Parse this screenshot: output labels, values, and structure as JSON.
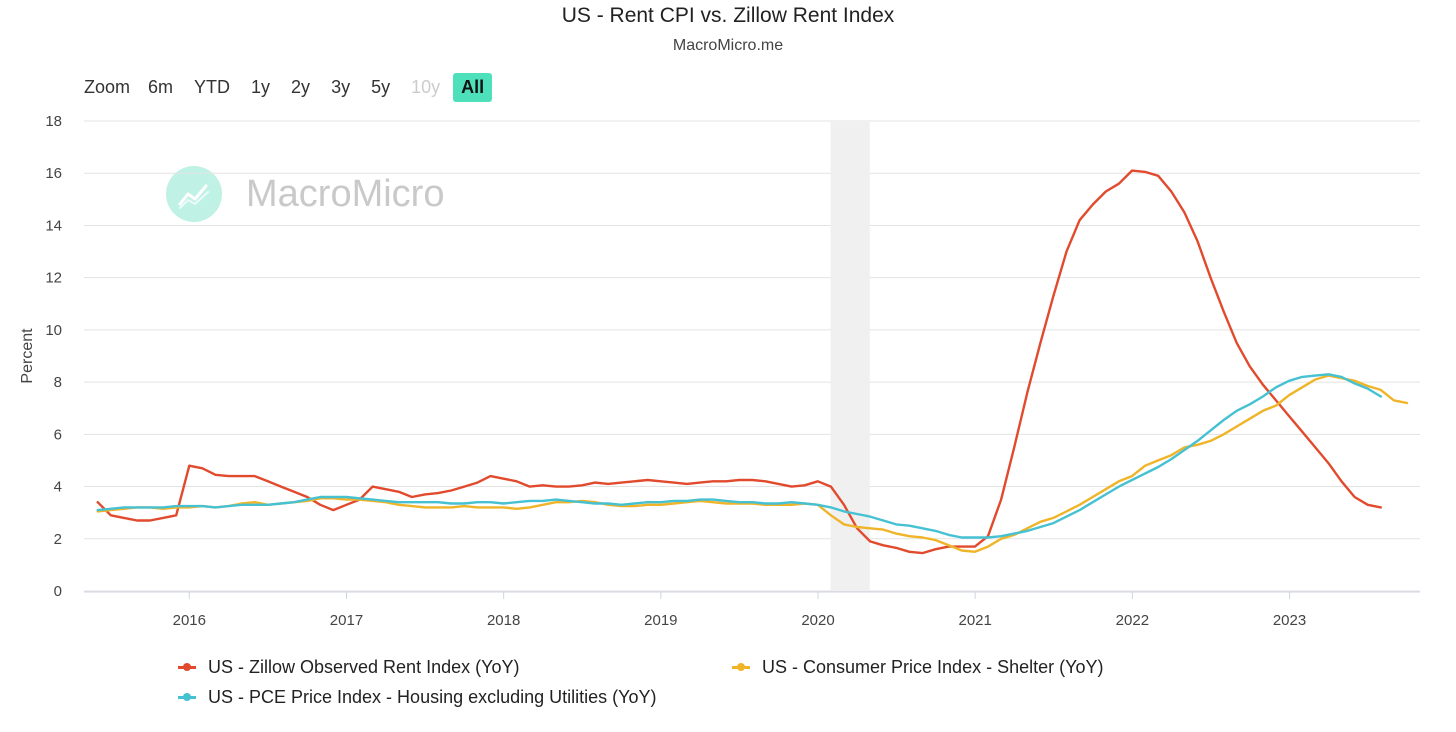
{
  "title": "US - Rent CPI vs. Zillow Rent Index",
  "subtitle": "MacroMicro.me",
  "watermark": "MacroMicro",
  "zoom": {
    "label": "Zoom",
    "buttons": [
      "6m",
      "YTD",
      "1y",
      "2y",
      "3y",
      "5y",
      "10y",
      "All"
    ],
    "disabled": "10y",
    "active": "All"
  },
  "chart_data": {
    "type": "line",
    "title": "US - Rent CPI vs. Zillow Rent Index",
    "ylabel": "Percent",
    "xlabel": "",
    "ylim": [
      0,
      18
    ],
    "yticks": [
      0,
      2,
      4,
      6,
      8,
      10,
      12,
      14,
      16,
      18
    ],
    "xlim": [
      2015.33,
      2023.83
    ],
    "xticks": [
      "2016",
      "2017",
      "2018",
      "2019",
      "2020",
      "2021",
      "2022",
      "2023"
    ],
    "recession_band": [
      2020.08,
      2020.33
    ],
    "series": [
      {
        "name": "US - Zillow Observed Rent Index (YoY)",
        "color": "#e14a2d",
        "start": 2015.417,
        "step": 0.0833,
        "values": [
          3.4,
          2.9,
          2.8,
          2.7,
          2.7,
          2.8,
          2.9,
          4.8,
          4.7,
          4.45,
          4.4,
          4.4,
          4.4,
          4.2,
          4.0,
          3.8,
          3.6,
          3.3,
          3.1,
          3.3,
          3.5,
          4.0,
          3.9,
          3.8,
          3.6,
          3.7,
          3.75,
          3.85,
          4.0,
          4.15,
          4.4,
          4.3,
          4.2,
          4.0,
          4.05,
          4.0,
          4.0,
          4.05,
          4.15,
          4.1,
          4.15,
          4.2,
          4.25,
          4.2,
          4.15,
          4.1,
          4.15,
          4.2,
          4.2,
          4.25,
          4.25,
          4.2,
          4.1,
          4.0,
          4.05,
          4.2,
          4.0,
          3.3,
          2.4,
          1.9,
          1.75,
          1.65,
          1.5,
          1.45,
          1.6,
          1.7,
          1.7,
          1.7,
          2.1,
          3.5,
          5.5,
          7.6,
          9.5,
          11.3,
          13.0,
          14.2,
          14.8,
          15.3,
          15.6,
          16.1,
          16.05,
          15.9,
          15.3,
          14.5,
          13.4,
          12.0,
          10.7,
          9.5,
          8.6,
          7.9,
          7.3,
          6.7,
          6.1,
          5.5,
          4.9,
          4.2,
          3.6,
          3.3,
          3.2
        ]
      },
      {
        "name": "US - Consumer Price Index - Shelter (YoY)",
        "color": "#f0b429",
        "start": 2015.417,
        "step": 0.0833,
        "values": [
          3.05,
          3.1,
          3.15,
          3.2,
          3.2,
          3.15,
          3.2,
          3.2,
          3.25,
          3.2,
          3.25,
          3.35,
          3.4,
          3.3,
          3.35,
          3.4,
          3.45,
          3.55,
          3.55,
          3.5,
          3.5,
          3.45,
          3.4,
          3.3,
          3.25,
          3.2,
          3.2,
          3.2,
          3.25,
          3.2,
          3.2,
          3.2,
          3.15,
          3.2,
          3.3,
          3.4,
          3.4,
          3.45,
          3.4,
          3.3,
          3.25,
          3.25,
          3.3,
          3.3,
          3.35,
          3.4,
          3.45,
          3.4,
          3.35,
          3.35,
          3.35,
          3.3,
          3.3,
          3.3,
          3.35,
          3.3,
          2.9,
          2.55,
          2.45,
          2.4,
          2.35,
          2.2,
          2.1,
          2.05,
          1.95,
          1.75,
          1.55,
          1.5,
          1.7,
          2.0,
          2.15,
          2.4,
          2.65,
          2.8,
          3.05,
          3.3,
          3.6,
          3.9,
          4.2,
          4.4,
          4.8,
          5.0,
          5.2,
          5.5,
          5.6,
          5.75,
          6.0,
          6.3,
          6.6,
          6.9,
          7.1,
          7.5,
          7.8,
          8.1,
          8.25,
          8.15,
          8.05,
          7.85,
          7.7,
          7.3,
          7.2
        ]
      },
      {
        "name": "US - PCE Price Index - Housing excluding Utilities (YoY)",
        "color": "#45c1d2",
        "start": 2015.417,
        "step": 0.0833,
        "values": [
          3.1,
          3.15,
          3.2,
          3.2,
          3.2,
          3.2,
          3.25,
          3.25,
          3.25,
          3.2,
          3.25,
          3.3,
          3.3,
          3.3,
          3.35,
          3.4,
          3.5,
          3.6,
          3.6,
          3.6,
          3.55,
          3.5,
          3.45,
          3.4,
          3.4,
          3.4,
          3.4,
          3.35,
          3.35,
          3.4,
          3.4,
          3.35,
          3.4,
          3.45,
          3.45,
          3.5,
          3.45,
          3.4,
          3.35,
          3.35,
          3.3,
          3.35,
          3.4,
          3.4,
          3.45,
          3.45,
          3.5,
          3.5,
          3.45,
          3.4,
          3.4,
          3.35,
          3.35,
          3.4,
          3.35,
          3.3,
          3.2,
          3.05,
          2.95,
          2.85,
          2.7,
          2.55,
          2.5,
          2.4,
          2.3,
          2.15,
          2.05,
          2.05,
          2.05,
          2.1,
          2.2,
          2.3,
          2.45,
          2.6,
          2.85,
          3.1,
          3.4,
          3.7,
          4.0,
          4.25,
          4.5,
          4.75,
          5.05,
          5.4,
          5.75,
          6.15,
          6.55,
          6.9,
          7.15,
          7.45,
          7.8,
          8.05,
          8.2,
          8.25,
          8.3,
          8.2,
          7.95,
          7.75,
          7.45
        ]
      }
    ]
  }
}
